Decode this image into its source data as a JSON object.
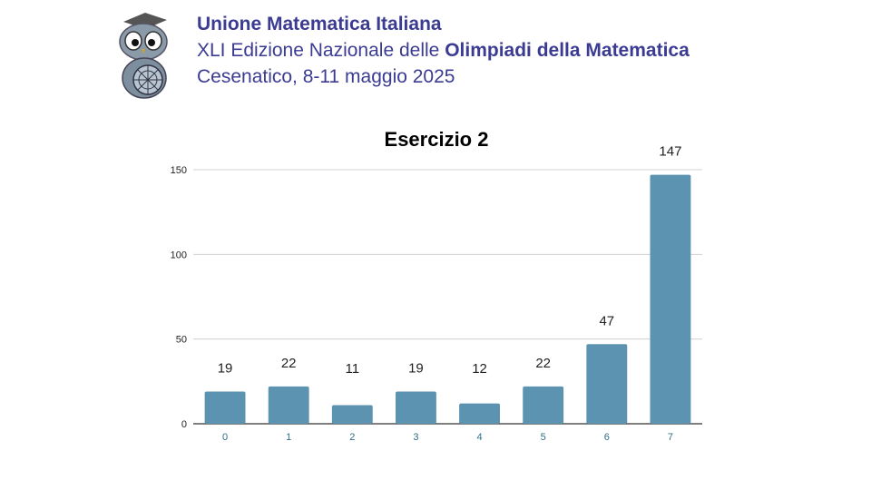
{
  "header": {
    "org": "Unione Matematica Italiana",
    "edition_prefix": "XLI Edizione Nazionale delle ",
    "edition_bold": "Olimpiadi della Matematica",
    "place_date": "Cesenatico, 8-11 maggio 2025"
  },
  "colors": {
    "bar": "#5b93b0",
    "header_text": "#3b3b93"
  },
  "logo": {
    "icon": "owl-mascot-icon"
  },
  "chart_data": {
    "type": "bar",
    "title": "Esercizio 2",
    "categories": [
      "0",
      "1",
      "2",
      "3",
      "4",
      "5",
      "6",
      "7"
    ],
    "values": [
      19,
      22,
      11,
      19,
      12,
      22,
      47,
      147
    ],
    "ylim": [
      0,
      150
    ],
    "yticks": [
      "0",
      "50",
      "100",
      "150"
    ],
    "xlabel": "",
    "ylabel": "",
    "grid": true
  }
}
